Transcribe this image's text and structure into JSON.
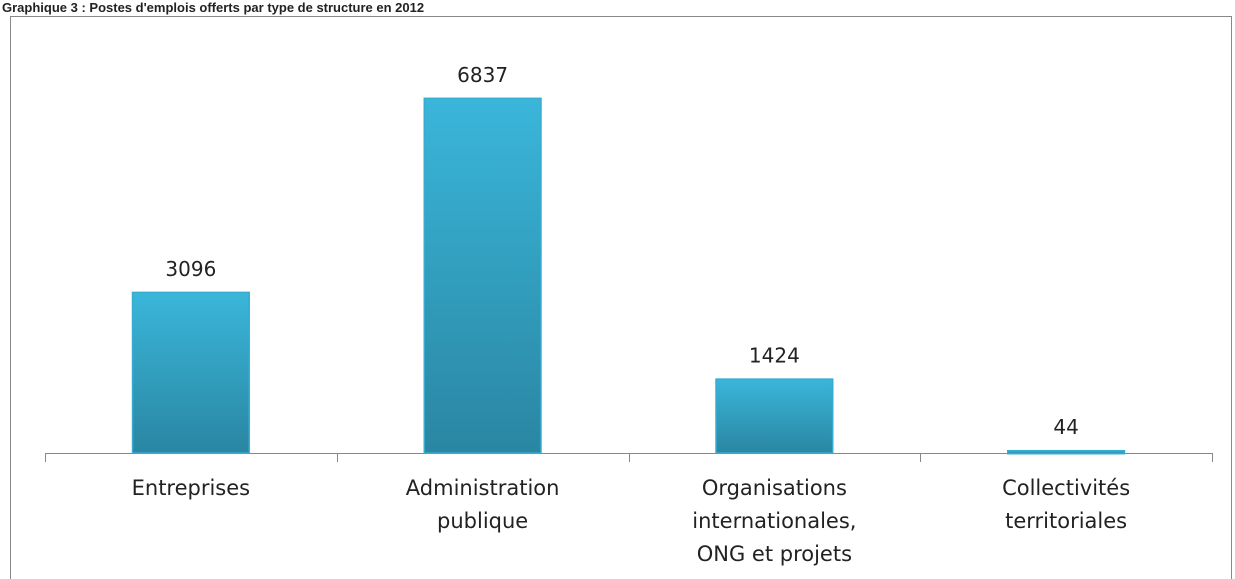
{
  "chart_data": {
    "type": "bar",
    "title": "Graphique 3 : Postes d'emplois offerts par type de structure en 2012",
    "categories": [
      "Entreprises",
      "Administration\npublique",
      "Organisations\ninternationales,\nONG et projets",
      "Collectivités\nterritoriales"
    ],
    "values": [
      3096,
      6837,
      1424,
      44
    ],
    "color": "#35acd0",
    "ylim": [
      0,
      8000
    ]
  }
}
